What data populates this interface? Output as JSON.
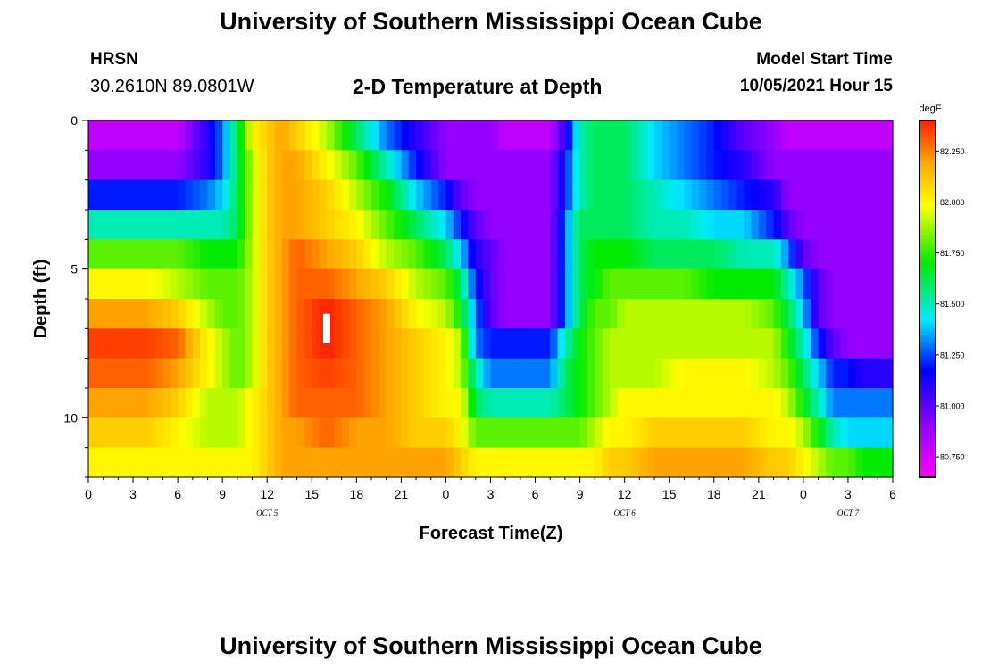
{
  "header": {
    "title": "University of Southern Mississippi Ocean Cube",
    "station": "HRSN",
    "coords": "30.2610N  89.0801W",
    "subtitle": "2-D Temperature at Depth",
    "model_start_label": "Model Start Time",
    "model_start_value": "10/05/2021 Hour 15"
  },
  "footer": {
    "title": "University of Southern Mississippi Ocean Cube"
  },
  "chart_data": {
    "type": "heatmap",
    "title": "2-D Temperature at Depth",
    "xlabel": "Forecast Time(Z)",
    "ylabel": "Depth (ft)",
    "x_range_hours": [
      0,
      54
    ],
    "y_range_ft": [
      0,
      12
    ],
    "x_ticks": [
      {
        "h": 0,
        "label": "0"
      },
      {
        "h": 3,
        "label": "3"
      },
      {
        "h": 6,
        "label": "6"
      },
      {
        "h": 9,
        "label": "9"
      },
      {
        "h": 12,
        "label": "12"
      },
      {
        "h": 15,
        "label": "15"
      },
      {
        "h": 18,
        "label": "18"
      },
      {
        "h": 21,
        "label": "21"
      },
      {
        "h": 24,
        "label": "0"
      },
      {
        "h": 27,
        "label": "3"
      },
      {
        "h": 30,
        "label": "6"
      },
      {
        "h": 33,
        "label": "9"
      },
      {
        "h": 36,
        "label": "12"
      },
      {
        "h": 39,
        "label": "15"
      },
      {
        "h": 42,
        "label": "18"
      },
      {
        "h": 45,
        "label": "21"
      },
      {
        "h": 48,
        "label": "0"
      },
      {
        "h": 51,
        "label": "3"
      },
      {
        "h": 54,
        "label": "6"
      }
    ],
    "date_labels": [
      {
        "h": 12,
        "label": "OCT 5"
      },
      {
        "h": 36,
        "label": "OCT 6"
      },
      {
        "h": 51,
        "label": "OCT 7"
      }
    ],
    "y_ticks": [
      {
        "v": 0,
        "label": "0"
      },
      {
        "v": 5,
        "label": "5"
      },
      {
        "v": 10,
        "label": "10"
      }
    ],
    "colorbar": {
      "unit": "degF",
      "min": 80.65,
      "max": 82.4,
      "tick_values": [
        82.25,
        82.0,
        81.75,
        81.5,
        81.25,
        81.0,
        80.75
      ],
      "tick_labels": [
        "82.250",
        "82.000",
        "81.750",
        "81.500",
        "81.250",
        "81.000",
        "80.750"
      ]
    },
    "depth_layers_ft": [
      0.5,
      1.5,
      2.5,
      3.5,
      4.5,
      5.5,
      6.5,
      7.5,
      8.5,
      9.5,
      10.5,
      11.5
    ],
    "time_hours": [
      0,
      2,
      4,
      6,
      8,
      9,
      10,
      11,
      12,
      13,
      14,
      16,
      18,
      20,
      22,
      24,
      25,
      26,
      27,
      28,
      29,
      30,
      31,
      32,
      33,
      34,
      35,
      36,
      38,
      40,
      42,
      44,
      46,
      47,
      48,
      49,
      50,
      51,
      52,
      53,
      54
    ],
    "temperature_degF": [
      [
        80.8,
        80.8,
        80.8,
        80.8,
        81.1,
        81.3,
        81.6,
        82.0,
        82.1,
        82.2,
        82.1,
        81.9,
        81.6,
        81.3,
        81.1,
        80.9,
        80.9,
        80.9,
        80.9,
        80.8,
        80.8,
        80.8,
        80.8,
        81.1,
        81.5,
        81.6,
        81.6,
        81.6,
        81.4,
        81.3,
        81.2,
        81.0,
        80.9,
        80.8,
        80.8,
        80.8,
        80.8,
        80.8,
        80.8,
        80.8,
        80.8
      ],
      [
        80.9,
        80.9,
        80.9,
        80.9,
        81.1,
        81.3,
        81.6,
        81.9,
        82.1,
        82.2,
        82.2,
        82.0,
        81.8,
        81.5,
        81.2,
        80.9,
        80.9,
        80.9,
        80.9,
        80.9,
        80.9,
        80.9,
        80.9,
        81.2,
        81.5,
        81.6,
        81.6,
        81.6,
        81.4,
        81.3,
        81.2,
        81.1,
        80.9,
        80.9,
        80.9,
        80.9,
        80.9,
        80.9,
        80.9,
        80.9,
        80.9
      ],
      [
        81.2,
        81.2,
        81.2,
        81.2,
        81.3,
        81.4,
        81.6,
        81.9,
        82.1,
        82.2,
        82.2,
        82.1,
        81.9,
        81.7,
        81.4,
        81.2,
        81.0,
        80.9,
        80.9,
        80.9,
        80.9,
        80.9,
        80.9,
        81.2,
        81.5,
        81.6,
        81.6,
        81.6,
        81.5,
        81.4,
        81.3,
        81.2,
        81.1,
        80.9,
        80.9,
        80.9,
        80.9,
        80.9,
        80.9,
        80.9,
        80.9
      ],
      [
        81.5,
        81.5,
        81.5,
        81.5,
        81.5,
        81.5,
        81.6,
        81.9,
        82.1,
        82.2,
        82.2,
        82.1,
        82.0,
        81.8,
        81.6,
        81.4,
        81.2,
        81.0,
        80.9,
        80.9,
        80.9,
        80.9,
        80.9,
        81.3,
        81.6,
        81.6,
        81.6,
        81.6,
        81.5,
        81.5,
        81.4,
        81.4,
        81.2,
        81.0,
        80.9,
        80.9,
        80.9,
        80.9,
        80.9,
        80.9,
        80.9
      ],
      [
        81.8,
        81.8,
        81.8,
        81.8,
        81.7,
        81.7,
        81.7,
        81.9,
        82.1,
        82.2,
        82.3,
        82.2,
        82.1,
        81.9,
        81.8,
        81.6,
        81.4,
        81.1,
        81.0,
        80.9,
        80.9,
        80.9,
        80.9,
        81.3,
        81.6,
        81.7,
        81.7,
        81.7,
        81.6,
        81.6,
        81.6,
        81.5,
        81.5,
        81.3,
        81.0,
        80.9,
        80.9,
        80.9,
        80.9,
        80.9,
        80.9
      ],
      [
        82.0,
        82.0,
        82.0,
        81.9,
        81.8,
        81.8,
        81.8,
        81.9,
        82.1,
        82.2,
        82.3,
        82.3,
        82.2,
        82.1,
        81.9,
        81.8,
        81.6,
        81.2,
        81.0,
        80.9,
        80.9,
        80.9,
        80.9,
        81.3,
        81.6,
        81.7,
        81.8,
        81.8,
        81.8,
        81.8,
        81.7,
        81.7,
        81.7,
        81.5,
        81.3,
        81.0,
        80.9,
        80.9,
        80.9,
        80.9,
        80.9
      ],
      [
        82.2,
        82.2,
        82.2,
        82.1,
        81.9,
        81.8,
        81.8,
        81.9,
        82.1,
        82.2,
        82.3,
        82.4,
        82.3,
        82.2,
        82.0,
        81.9,
        81.7,
        81.3,
        81.0,
        80.9,
        80.9,
        80.9,
        80.9,
        81.3,
        81.6,
        81.8,
        81.8,
        81.9,
        81.9,
        81.9,
        81.9,
        81.9,
        81.8,
        81.6,
        81.4,
        81.0,
        80.9,
        80.9,
        80.9,
        80.9,
        80.9
      ],
      [
        82.35,
        82.35,
        82.35,
        82.3,
        82.0,
        81.9,
        81.8,
        81.9,
        82.1,
        82.2,
        82.3,
        82.4,
        82.3,
        82.2,
        82.1,
        82.0,
        81.9,
        81.3,
        81.2,
        81.2,
        81.2,
        81.2,
        81.2,
        81.5,
        81.7,
        81.8,
        81.9,
        81.9,
        81.9,
        81.9,
        81.9,
        81.9,
        81.9,
        81.7,
        81.5,
        81.2,
        81.0,
        80.9,
        80.9,
        80.9,
        80.9
      ],
      [
        82.3,
        82.3,
        82.3,
        82.2,
        82.0,
        81.9,
        81.8,
        81.9,
        82.1,
        82.2,
        82.3,
        82.35,
        82.3,
        82.2,
        82.1,
        82.0,
        81.9,
        81.5,
        81.3,
        81.3,
        81.3,
        81.3,
        81.3,
        81.6,
        81.7,
        81.8,
        81.9,
        81.9,
        81.9,
        82.0,
        82.0,
        82.0,
        81.9,
        81.8,
        81.6,
        81.4,
        81.2,
        81.2,
        81.1,
        81.1,
        81.1
      ],
      [
        82.2,
        82.2,
        82.2,
        82.1,
        81.9,
        81.9,
        81.9,
        82.0,
        82.1,
        82.2,
        82.3,
        82.3,
        82.3,
        82.2,
        82.1,
        82.0,
        82.0,
        81.6,
        81.5,
        81.5,
        81.5,
        81.5,
        81.5,
        81.6,
        81.7,
        81.8,
        81.9,
        82.0,
        82.0,
        82.0,
        82.0,
        82.0,
        82.0,
        81.9,
        81.7,
        81.5,
        81.3,
        81.3,
        81.3,
        81.3,
        81.3
      ],
      [
        82.1,
        82.1,
        82.1,
        82.0,
        81.9,
        81.9,
        81.9,
        82.0,
        82.1,
        82.2,
        82.2,
        82.3,
        82.2,
        82.2,
        82.1,
        82.1,
        82.0,
        81.8,
        81.8,
        81.8,
        81.8,
        81.8,
        81.8,
        81.8,
        81.8,
        81.9,
        82.0,
        82.0,
        82.1,
        82.1,
        82.1,
        82.1,
        82.0,
        82.0,
        81.9,
        81.7,
        81.5,
        81.4,
        81.4,
        81.4,
        81.4
      ],
      [
        82.0,
        82.0,
        82.0,
        82.0,
        82.0,
        82.0,
        82.0,
        82.0,
        82.1,
        82.2,
        82.2,
        82.2,
        82.2,
        82.2,
        82.2,
        82.2,
        82.1,
        82.0,
        82.0,
        82.0,
        82.0,
        82.0,
        82.0,
        82.0,
        82.0,
        82.0,
        82.1,
        82.1,
        82.2,
        82.2,
        82.2,
        82.2,
        82.1,
        82.1,
        82.0,
        81.9,
        81.8,
        81.8,
        81.7,
        81.7,
        81.7
      ]
    ],
    "marker": {
      "h": 16,
      "depth_from": 6.5,
      "depth_to": 7.5,
      "color": "#ffffff"
    }
  }
}
